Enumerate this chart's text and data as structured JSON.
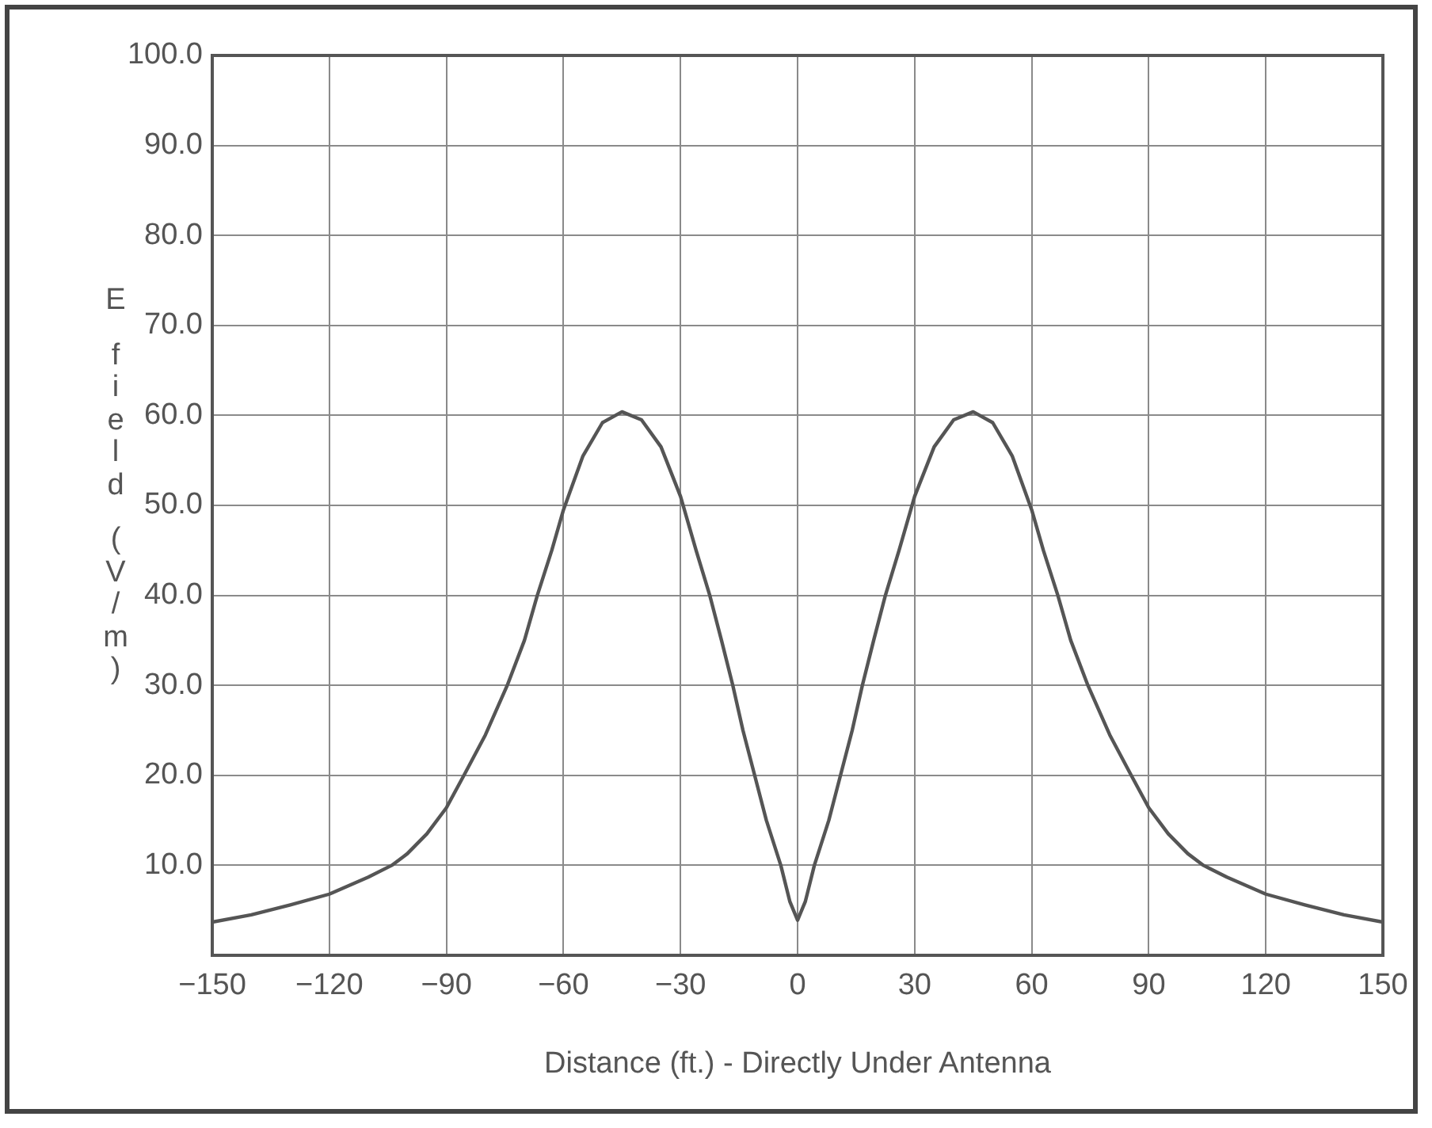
{
  "chart_data": {
    "type": "line",
    "xlabel": "Distance (ft.) - Directly Under Antenna",
    "ylabel": "E field (V/m)",
    "x": [
      -150,
      -140,
      -130,
      -120,
      -110,
      -104,
      -100,
      -95,
      -90,
      -85.5,
      -80,
      -74.4,
      -70,
      -66.7,
      -63,
      -60,
      -55,
      -50,
      -45,
      -40,
      -35,
      -30,
      -26,
      -22.5,
      -19.5,
      -16.6,
      -14,
      -11,
      -8,
      -4.3,
      -2,
      0,
      2,
      4.3,
      8,
      11,
      14,
      16.6,
      19.5,
      22.5,
      26,
      30,
      35,
      40,
      45,
      50,
      55,
      60,
      63,
      66.7,
      70,
      74.4,
      80,
      85.5,
      90,
      95,
      100,
      104,
      110,
      120,
      130,
      140,
      150
    ],
    "series": [
      {
        "color": "#555555",
        "values": [
          3.7,
          4.5,
          5.6,
          6.8,
          8.7,
          10,
          11.3,
          13.5,
          16.4,
          20,
          24.5,
          30,
          35,
          40,
          45,
          49.5,
          55.5,
          59.2,
          60.4,
          59.5,
          56.5,
          51,
          45,
          40,
          35,
          30,
          25,
          20,
          15,
          10,
          6,
          3.9,
          6,
          10,
          15,
          20,
          25,
          30,
          35,
          40,
          45,
          51,
          56.5,
          59.5,
          60.4,
          59.2,
          55.5,
          49.5,
          45,
          40,
          35,
          30,
          24.5,
          20,
          16.4,
          13.5,
          11.3,
          10,
          8.7,
          6.8,
          5.6,
          4.5,
          3.7
        ]
      }
    ],
    "xlim": [
      -150,
      150
    ],
    "xticks": [
      {
        "value": -150,
        "label": "−150"
      },
      {
        "value": -120,
        "label": "−120"
      },
      {
        "value": -90,
        "label": "−90"
      },
      {
        "value": -60,
        "label": "−60"
      },
      {
        "value": -30,
        "label": "−30"
      },
      0,
      30,
      60,
      90,
      120,
      150
    ],
    "ylim": [
      0,
      100
    ],
    "yticks": [
      {
        "value": 0,
        "label": null
      },
      {
        "value": 10,
        "label": "10.0"
      },
      {
        "value": 20,
        "label": "20.0"
      },
      {
        "value": 30,
        "label": "30.0"
      },
      {
        "value": 40,
        "label": "40.0"
      },
      {
        "value": 50,
        "label": "50.0"
      },
      {
        "value": 60,
        "label": "60.0"
      },
      {
        "value": 70,
        "label": "70.0"
      },
      {
        "value": 80,
        "label": "80.0"
      },
      {
        "value": 90,
        "label": "90.0"
      },
      {
        "value": 100,
        "label": "100.0"
      }
    ],
    "grid": true,
    "legend": false,
    "marker": "none",
    "line_style": "solid"
  }
}
